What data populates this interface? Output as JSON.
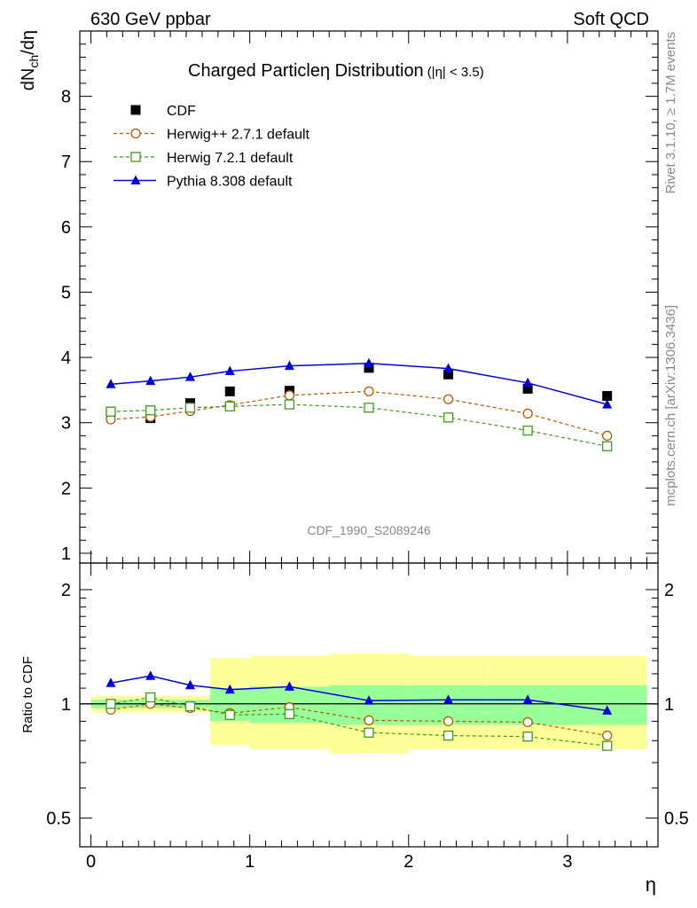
{
  "header": {
    "left": "630 GeV ppbar",
    "right": "Soft QCD",
    "side_top": "Rivet 3.1.10, ≥ 1.7M events",
    "side_bottom": "mcplots.cern.ch [arXiv:1306.3436]"
  },
  "main_title": {
    "main": "Charged Particleη Distribution",
    "sub": "(|η| < 3.5)"
  },
  "watermark": "CDF_1990_S2089246",
  "ylabel_top": "dN",
  "ylabel_top_sub": "ch",
  "ylabel_top_rest": "/dη",
  "ylabel_bottom": "Ratio to CDF",
  "xlabel": "η",
  "colors": {
    "cdf": "#000000",
    "herwigpp": "#b35a00",
    "herwig7": "#3c9a1a",
    "pythia": "#0000dd",
    "band_inner": "#99ff99",
    "band_outer": "#ffff99"
  },
  "chart_data": [
    {
      "type": "line",
      "panel": "main",
      "x": [
        0.125,
        0.375,
        0.625,
        0.875,
        1.25,
        1.75,
        2.25,
        2.75,
        3.25
      ],
      "xlim": [
        -0.07,
        3.57
      ],
      "ylim": [
        0.85,
        9.0
      ],
      "yticks": [
        1,
        2,
        3,
        4,
        5,
        6,
        7,
        8
      ],
      "legend_position": "top-left",
      "series": [
        {
          "name": "CDF",
          "style": "cdf",
          "values": [
            3.17,
            3.07,
            3.3,
            3.48,
            3.49,
            3.84,
            3.74,
            3.52,
            3.41
          ]
        },
        {
          "name": "Herwig++ 2.7.1 default",
          "style": "herwigpp",
          "values": [
            3.05,
            3.09,
            3.18,
            3.27,
            3.42,
            3.48,
            3.36,
            3.14,
            2.8
          ]
        },
        {
          "name": "Herwig 7.2.1 default",
          "style": "herwig7",
          "values": [
            3.17,
            3.19,
            3.23,
            3.25,
            3.28,
            3.23,
            3.08,
            2.88,
            2.64
          ]
        },
        {
          "name": "Pythia 8.308 default",
          "style": "pythia",
          "values": [
            3.59,
            3.64,
            3.7,
            3.79,
            3.87,
            3.91,
            3.83,
            3.61,
            3.28
          ]
        }
      ]
    },
    {
      "type": "line",
      "panel": "ratio",
      "x": [
        0.125,
        0.375,
        0.625,
        0.875,
        1.25,
        1.75,
        2.25,
        2.75,
        3.25
      ],
      "xlim": [
        -0.07,
        3.57
      ],
      "xticks": [
        0,
        1,
        2,
        3
      ],
      "ylim": [
        0.42,
        2.35
      ],
      "yticks": [
        0.5,
        1,
        2
      ],
      "log_scale_y": true,
      "bands": {
        "edges": [
          0,
          0.5,
          0.75,
          1.0,
          1.5,
          2.0,
          2.5,
          3.0,
          3.5
        ],
        "inner_low": [
          0.975,
          0.975,
          0.9,
          0.89,
          0.88,
          0.88,
          0.88,
          0.88,
          0.85
        ],
        "inner_high": [
          1.025,
          1.025,
          1.1,
          1.11,
          1.12,
          1.12,
          1.12,
          1.12,
          1.23
        ],
        "outer_low": [
          0.95,
          0.95,
          0.78,
          0.76,
          0.74,
          0.76,
          0.76,
          0.76,
          0.66
        ],
        "outer_high": [
          1.05,
          1.05,
          1.32,
          1.34,
          1.36,
          1.34,
          1.34,
          1.34,
          1.42
        ]
      },
      "series": [
        {
          "name": "Herwig++ 2.7.1 default",
          "style": "herwigpp",
          "values": [
            0.965,
            1.0,
            0.975,
            0.945,
            0.98,
            0.905,
            0.9,
            0.895,
            0.825
          ]
        },
        {
          "name": "Herwig 7.2.1 default",
          "style": "herwig7",
          "values": [
            1.0,
            1.04,
            0.985,
            0.935,
            0.94,
            0.84,
            0.825,
            0.82,
            0.775
          ]
        },
        {
          "name": "Pythia 8.308 default",
          "style": "pythia",
          "values": [
            1.135,
            1.185,
            1.12,
            1.09,
            1.11,
            1.02,
            1.025,
            1.025,
            0.96
          ]
        }
      ]
    }
  ]
}
